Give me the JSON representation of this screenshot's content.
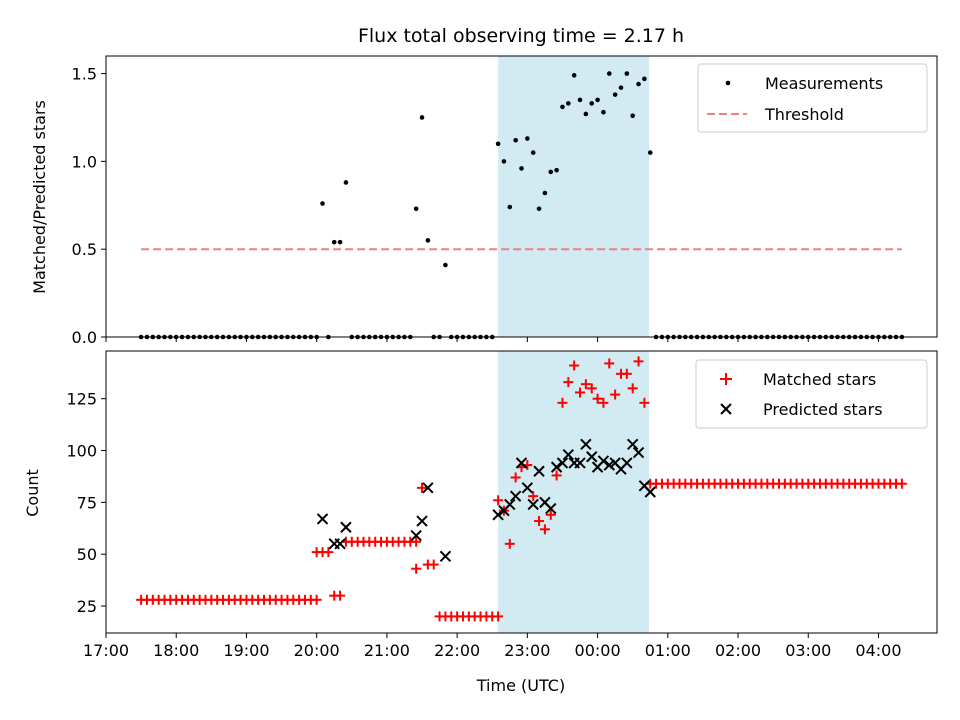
{
  "figure": {
    "title": "Flux total observing time = 2.17 h",
    "xlabel": "Time (UTC)"
  },
  "chart_data": [
    {
      "type": "scatter",
      "ylabel": "Matched/Predicted stars",
      "xlim": [
        "17:00",
        "04:50"
      ],
      "ylim": [
        0,
        1.6
      ],
      "x_ticks": [
        "17:00",
        "18:00",
        "19:00",
        "20:00",
        "21:00",
        "22:00",
        "23:00",
        "00:00",
        "01:00",
        "02:00",
        "03:00",
        "04:00"
      ],
      "y_ticks": [
        "0.0",
        "0.5",
        "1.0",
        "1.5"
      ],
      "shaded_region": {
        "start": "22:35",
        "end": "00:44",
        "color": "#add8e6"
      },
      "legend": {
        "position": "upper right",
        "entries": [
          "Measurements",
          "Threshold"
        ]
      },
      "series": [
        {
          "name": "Measurements",
          "marker": "dot",
          "color": "#000000",
          "points": [
            [
              "20:05",
              0.76
            ],
            [
              "20:15",
              0.54
            ],
            [
              "20:20",
              0.54
            ],
            [
              "20:25",
              0.88
            ],
            [
              "21:25",
              0.73
            ],
            [
              "21:30",
              1.25
            ],
            [
              "21:35",
              0.55
            ],
            [
              "21:50",
              0.41
            ],
            [
              "22:35",
              1.1
            ],
            [
              "22:40",
              1.0
            ],
            [
              "22:45",
              0.74
            ],
            [
              "22:50",
              1.12
            ],
            [
              "22:55",
              0.96
            ],
            [
              "23:00",
              1.13
            ],
            [
              "23:05",
              1.05
            ],
            [
              "23:10",
              0.73
            ],
            [
              "23:15",
              0.82
            ],
            [
              "23:20",
              0.94
            ],
            [
              "23:25",
              0.95
            ],
            [
              "23:30",
              1.31
            ],
            [
              "23:35",
              1.33
            ],
            [
              "23:40",
              1.49
            ],
            [
              "23:45",
              1.35
            ],
            [
              "23:50",
              1.27
            ],
            [
              "23:55",
              1.33
            ],
            [
              "00:00",
              1.35
            ],
            [
              "00:05",
              1.28
            ],
            [
              "00:10",
              1.5
            ],
            [
              "00:15",
              1.38
            ],
            [
              "00:20",
              1.42
            ],
            [
              "00:25",
              1.5
            ],
            [
              "00:30",
              1.26
            ],
            [
              "00:35",
              1.44
            ],
            [
              "00:40",
              1.47
            ],
            [
              "00:45",
              1.05
            ]
          ],
          "zero_blocks": [
            {
              "start": "17:30",
              "end": "20:00",
              "step_min": 5
            },
            {
              "start": "20:10",
              "end": "20:10",
              "step_min": 5
            },
            {
              "start": "20:30",
              "end": "21:20",
              "step_min": 5
            },
            {
              "start": "21:40",
              "end": "21:45",
              "step_min": 5
            },
            {
              "start": "21:55",
              "end": "22:30",
              "step_min": 5
            },
            {
              "start": "00:50",
              "end": "04:20",
              "step_min": 5
            }
          ]
        },
        {
          "name": "Threshold",
          "type": "line",
          "style": "dashed",
          "color": "#f08080",
          "points": [
            [
              "17:30",
              0.5
            ],
            [
              "04:20",
              0.5
            ]
          ]
        }
      ]
    },
    {
      "type": "scatter",
      "ylabel": "Count",
      "xlim": [
        "17:00",
        "04:50"
      ],
      "ylim": [
        12,
        148
      ],
      "x_ticks": [
        "17:00",
        "18:00",
        "19:00",
        "20:00",
        "21:00",
        "22:00",
        "23:00",
        "00:00",
        "01:00",
        "02:00",
        "03:00",
        "04:00"
      ],
      "y_ticks": [
        "25",
        "50",
        "75",
        "100",
        "125"
      ],
      "shaded_region": {
        "start": "22:35",
        "end": "00:44",
        "color": "#add8e6"
      },
      "legend": {
        "position": "upper right",
        "entries": [
          "Matched stars",
          "Predicted stars"
        ]
      },
      "series": [
        {
          "name": "Matched stars",
          "marker": "plus",
          "color": "#ff0000",
          "blocks": [
            {
              "start": "17:30",
              "end": "20:00",
              "step_min": 5,
              "value": 28
            },
            {
              "start": "20:00",
              "end": "20:10",
              "step_min": 5,
              "value": 51
            },
            {
              "start": "20:15",
              "end": "20:20",
              "step_min": 5,
              "value": 30
            },
            {
              "start": "20:25",
              "end": "21:25",
              "step_min": 5,
              "value": 56
            },
            {
              "start": "21:45",
              "end": "22:35",
              "step_min": 5,
              "value": 20
            },
            {
              "start": "00:45",
              "end": "04:20",
              "step_min": 5,
              "value": 84
            }
          ],
          "points": [
            [
              "21:25",
              43
            ],
            [
              "21:30",
              82
            ],
            [
              "21:35",
              45
            ],
            [
              "21:40",
              45
            ],
            [
              "22:35",
              76
            ],
            [
              "22:40",
              71
            ],
            [
              "22:45",
              55
            ],
            [
              "22:50",
              87
            ],
            [
              "22:55",
              92
            ],
            [
              "23:00",
              93
            ],
            [
              "23:05",
              78
            ],
            [
              "23:10",
              66
            ],
            [
              "23:15",
              62
            ],
            [
              "23:20",
              69
            ],
            [
              "23:25",
              88
            ],
            [
              "23:30",
              123
            ],
            [
              "23:35",
              133
            ],
            [
              "23:40",
              141
            ],
            [
              "23:45",
              128
            ],
            [
              "23:50",
              132
            ],
            [
              "23:55",
              130
            ],
            [
              "00:00",
              125
            ],
            [
              "00:05",
              123
            ],
            [
              "00:10",
              142
            ],
            [
              "00:15",
              127
            ],
            [
              "00:20",
              137
            ],
            [
              "00:25",
              137
            ],
            [
              "00:30",
              130
            ],
            [
              "00:35",
              143
            ],
            [
              "00:40",
              123
            ]
          ]
        },
        {
          "name": "Predicted stars",
          "marker": "x",
          "color": "#000000",
          "points": [
            [
              "20:05",
              67
            ],
            [
              "20:15",
              55
            ],
            [
              "20:20",
              55
            ],
            [
              "20:25",
              63
            ],
            [
              "21:25",
              59
            ],
            [
              "21:30",
              66
            ],
            [
              "21:35",
              82
            ],
            [
              "21:50",
              49
            ],
            [
              "22:35",
              69
            ],
            [
              "22:40",
              71
            ],
            [
              "22:45",
              74
            ],
            [
              "22:50",
              78
            ],
            [
              "22:55",
              94
            ],
            [
              "23:00",
              82
            ],
            [
              "23:05",
              74
            ],
            [
              "23:10",
              90
            ],
            [
              "23:15",
              75
            ],
            [
              "23:20",
              72
            ],
            [
              "23:25",
              92
            ],
            [
              "23:30",
              94
            ],
            [
              "23:35",
              98
            ],
            [
              "23:40",
              94
            ],
            [
              "23:45",
              94
            ],
            [
              "23:50",
              103
            ],
            [
              "23:55",
              97
            ],
            [
              "00:00",
              92
            ],
            [
              "00:05",
              95
            ],
            [
              "00:10",
              93
            ],
            [
              "00:15",
              94
            ],
            [
              "00:20",
              91
            ],
            [
              "00:25",
              94
            ],
            [
              "00:30",
              103
            ],
            [
              "00:35",
              99
            ],
            [
              "00:40",
              83
            ],
            [
              "00:45",
              80
            ]
          ]
        }
      ]
    }
  ]
}
